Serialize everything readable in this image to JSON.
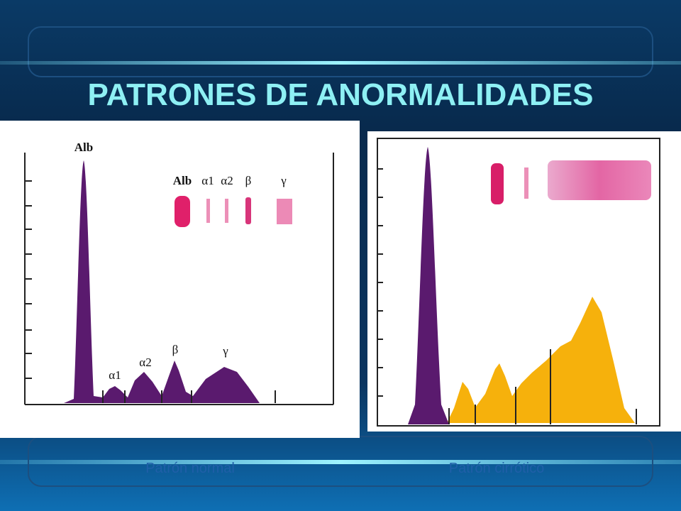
{
  "header": {
    "title": "PATRONES DE ANORMALIDADES"
  },
  "figures": [
    {
      "caption": "Patrón normal",
      "peak_labels": [
        "Alb",
        "α1",
        "α2",
        "β",
        "γ"
      ],
      "band_labels": [
        "Alb",
        "α1",
        "α2",
        "β",
        "γ"
      ]
    },
    {
      "caption": "Patrón cirrótico"
    }
  ]
}
